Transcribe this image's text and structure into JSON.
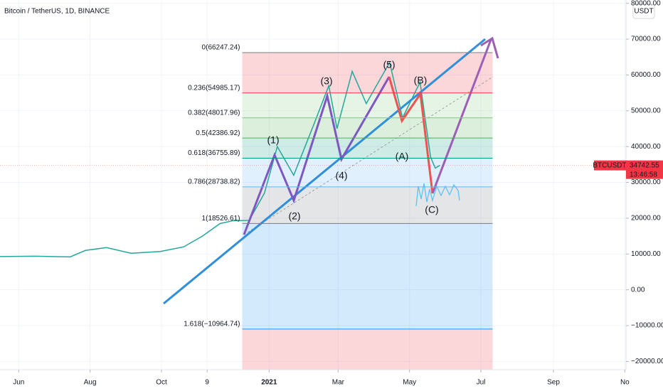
{
  "chart_data": {
    "type": "line",
    "title": "Bitcoin / TetherUS, 1D, BINANCE",
    "currency_button": "USDT",
    "x": [
      "2020-05-16",
      "2020-06-15",
      "2020-07-15",
      "2020-07-28",
      "2020-08-15",
      "2020-09-05",
      "2020-09-30",
      "2020-10-20",
      "2020-11-05",
      "2020-11-20",
      "2020-12-01",
      "2020-12-15",
      "2020-12-28",
      "2021-01-08",
      "2021-01-22",
      "2021-02-08",
      "2021-02-21",
      "2021-02-28",
      "2021-03-13",
      "2021-03-25",
      "2021-04-14",
      "2021-04-25",
      "2021-05-10",
      "2021-05-19",
      "2021-05-23",
      "2021-05-27"
    ],
    "series": [
      {
        "name": "BTCUSDT",
        "color": "#26a69a",
        "values": [
          9300,
          9400,
          9200,
          11000,
          11800,
          10200,
          10700,
          12000,
          15000,
          18500,
          19300,
          19400,
          27000,
          40000,
          32000,
          46000,
          57000,
          45000,
          61000,
          52000,
          63500,
          48000,
          58000,
          37000,
          34000,
          34742.55
        ]
      }
    ],
    "xlim": [
      "2020-05-16",
      "2021-11-02"
    ],
    "xticks": [
      {
        "value": "2020-06-01",
        "label": "Jun"
      },
      {
        "value": "2020-08-01",
        "label": "Aug"
      },
      {
        "value": "2020-10-01",
        "label": "Oct"
      },
      {
        "value": "2020-11-09",
        "label": "9"
      },
      {
        "value": "2021-01-01",
        "label": "2021"
      },
      {
        "value": "2021-03-01",
        "label": "Mar"
      },
      {
        "value": "2021-05-01",
        "label": "May"
      },
      {
        "value": "2021-07-01",
        "label": "Jul"
      },
      {
        "value": "2021-09-01",
        "label": "Sep"
      },
      {
        "value": "2021-11-01",
        "label": "No"
      }
    ],
    "ylim": [
      -22300,
      80930
    ],
    "yticks": [
      {
        "value": 80000,
        "label": "80000.00"
      },
      {
        "value": 70000,
        "label": "70000.00"
      },
      {
        "value": 60000,
        "label": "60000.00"
      },
      {
        "value": 50000,
        "label": "50000.00"
      },
      {
        "value": 40000,
        "label": "40000.00"
      },
      {
        "value": 30000,
        "label": "30000.00"
      },
      {
        "value": 20000,
        "label": "20000.00"
      },
      {
        "value": 10000,
        "label": "10000.00"
      },
      {
        "value": 0,
        "label": "0.00"
      },
      {
        "value": -10000,
        "label": "−10000.00"
      },
      {
        "value": -20000,
        "label": "−20000.00"
      }
    ],
    "grid": true,
    "fib_range": [
      "2020-12-09",
      "2021-07-11"
    ],
    "fib_levels": [
      {
        "value": 66247.24,
        "label": "0(66247.24)",
        "color": "#787b86"
      },
      {
        "value": 54985.17,
        "label": "0.236(54985.17)",
        "color": "#f23645"
      },
      {
        "value": 48017.96,
        "label": "0.382(48017.96)",
        "color": "#81c784"
      },
      {
        "value": 42386.92,
        "label": "0.5(42386.92)",
        "color": "#4caf50"
      },
      {
        "value": 36755.89,
        "label": "0.618(36755.89)",
        "color": "#089981"
      },
      {
        "value": 28738.82,
        "label": "0.786(28738.82)",
        "color": "#64b5f6"
      },
      {
        "value": 18526.61,
        "label": "1(18526.61)",
        "color": "#787b86"
      },
      {
        "value": -10964.74,
        "label": "1.618(−10964.74)",
        "color": "#2196f3"
      }
    ],
    "wave_labels": [
      "(1)",
      "(2)",
      "(3)",
      "(4)",
      "(5)",
      "(A)",
      "(B)",
      "(C)"
    ],
    "price_tag": {
      "symbol": "BTCUSDT",
      "value": 34742.55,
      "countdown": "13:46:58",
      "color": "#f23645"
    }
  }
}
